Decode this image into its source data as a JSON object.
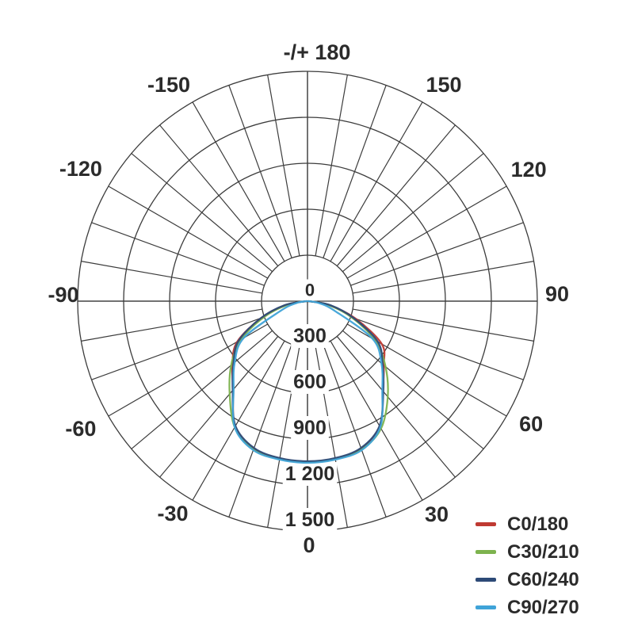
{
  "chart_data": {
    "type": "line",
    "subtype": "polar_photometric_intensity_distribution",
    "title": "",
    "orientation": {
      "zero_angle": "bottom",
      "positive_angles": "right_side",
      "max_angle_label": "-/+ 180"
    },
    "angular_grid_step_deg": 10,
    "angular_ticks": [
      {
        "deg": 180,
        "label": "-/+ 180"
      },
      {
        "deg": -150,
        "label": "-150"
      },
      {
        "deg": 150,
        "label": "150"
      },
      {
        "deg": -120,
        "label": "-120"
      },
      {
        "deg": 120,
        "label": "120"
      },
      {
        "deg": -90,
        "label": "-90"
      },
      {
        "deg": 90,
        "label": "90"
      },
      {
        "deg": -60,
        "label": "-60"
      },
      {
        "deg": 60,
        "label": "60"
      },
      {
        "deg": -30,
        "label": "-30"
      },
      {
        "deg": 30,
        "label": "30"
      },
      {
        "deg": 0,
        "label": "0"
      }
    ],
    "radial_ticks": [
      0,
      300,
      600,
      900,
      1200,
      1500
    ],
    "radial_tick_labels": [
      "0",
      "300",
      "600",
      "900",
      "1 200",
      "1 500"
    ],
    "radial_max": 1500,
    "grid": true,
    "background": "#ffffff",
    "grid_color": "#3c3c3c",
    "text_color": "#2b2b2b",
    "legend_position": "bottom-right",
    "sample_angles_deg": [
      -90,
      -80,
      -70,
      -60,
      -50,
      -40,
      -30,
      -20,
      -10,
      0,
      10,
      20,
      30,
      40,
      50,
      60,
      70,
      80,
      90
    ],
    "series": [
      {
        "name": "C0/180",
        "color": "#bf3a32",
        "values": [
          5,
          140,
          320,
          530,
          640,
          755,
          945,
          1025,
          1045,
          1050,
          1045,
          1025,
          945,
          765,
          650,
          560,
          335,
          140,
          5
        ]
      },
      {
        "name": "C30/210",
        "color": "#7db34e",
        "values": [
          5,
          130,
          300,
          500,
          650,
          790,
          950,
          1030,
          1045,
          1050,
          1045,
          1030,
          960,
          815,
          665,
          510,
          305,
          135,
          5
        ]
      },
      {
        "name": "C60/240",
        "color": "#2d4a77",
        "values": [
          5,
          150,
          325,
          520,
          630,
          760,
          940,
          1020,
          1040,
          1045,
          1040,
          1020,
          940,
          770,
          640,
          530,
          320,
          150,
          5
        ]
      },
      {
        "name": "C90/270",
        "color": "#3fa3d8",
        "values": [
          5,
          75,
          190,
          480,
          620,
          750,
          950,
          1035,
          1050,
          1055,
          1050,
          1035,
          950,
          760,
          630,
          490,
          195,
          80,
          5
        ]
      }
    ]
  },
  "legend": {
    "items": [
      {
        "label": "C0/180",
        "color": "#bf3a32"
      },
      {
        "label": "C30/210",
        "color": "#7db34e"
      },
      {
        "label": "C60/240",
        "color": "#2d4a77"
      },
      {
        "label": "C90/270",
        "color": "#3fa3d8"
      }
    ]
  }
}
